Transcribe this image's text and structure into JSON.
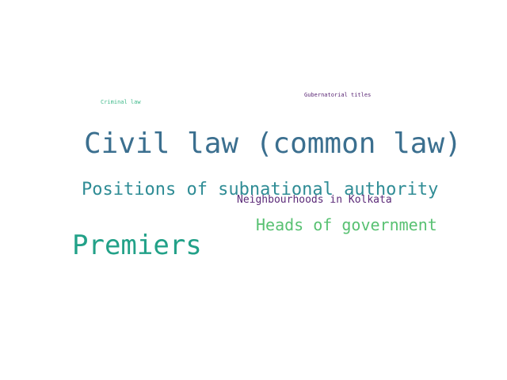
{
  "wordcloud": {
    "words": [
      {
        "text": "Criminal law",
        "color": "#3fb98a"
      },
      {
        "text": "Gubernatorial titles",
        "color": "#5a2675"
      },
      {
        "text": "Civil law (common law)",
        "color": "#3b6f8f"
      },
      {
        "text": "Positions of subnational authority",
        "color": "#2f8c95"
      },
      {
        "text": "Neighbourhoods in Kolkata",
        "color": "#5b2a78"
      },
      {
        "text": "Heads of government",
        "color": "#58c172"
      },
      {
        "text": "Premiers",
        "color": "#22a188"
      }
    ]
  }
}
